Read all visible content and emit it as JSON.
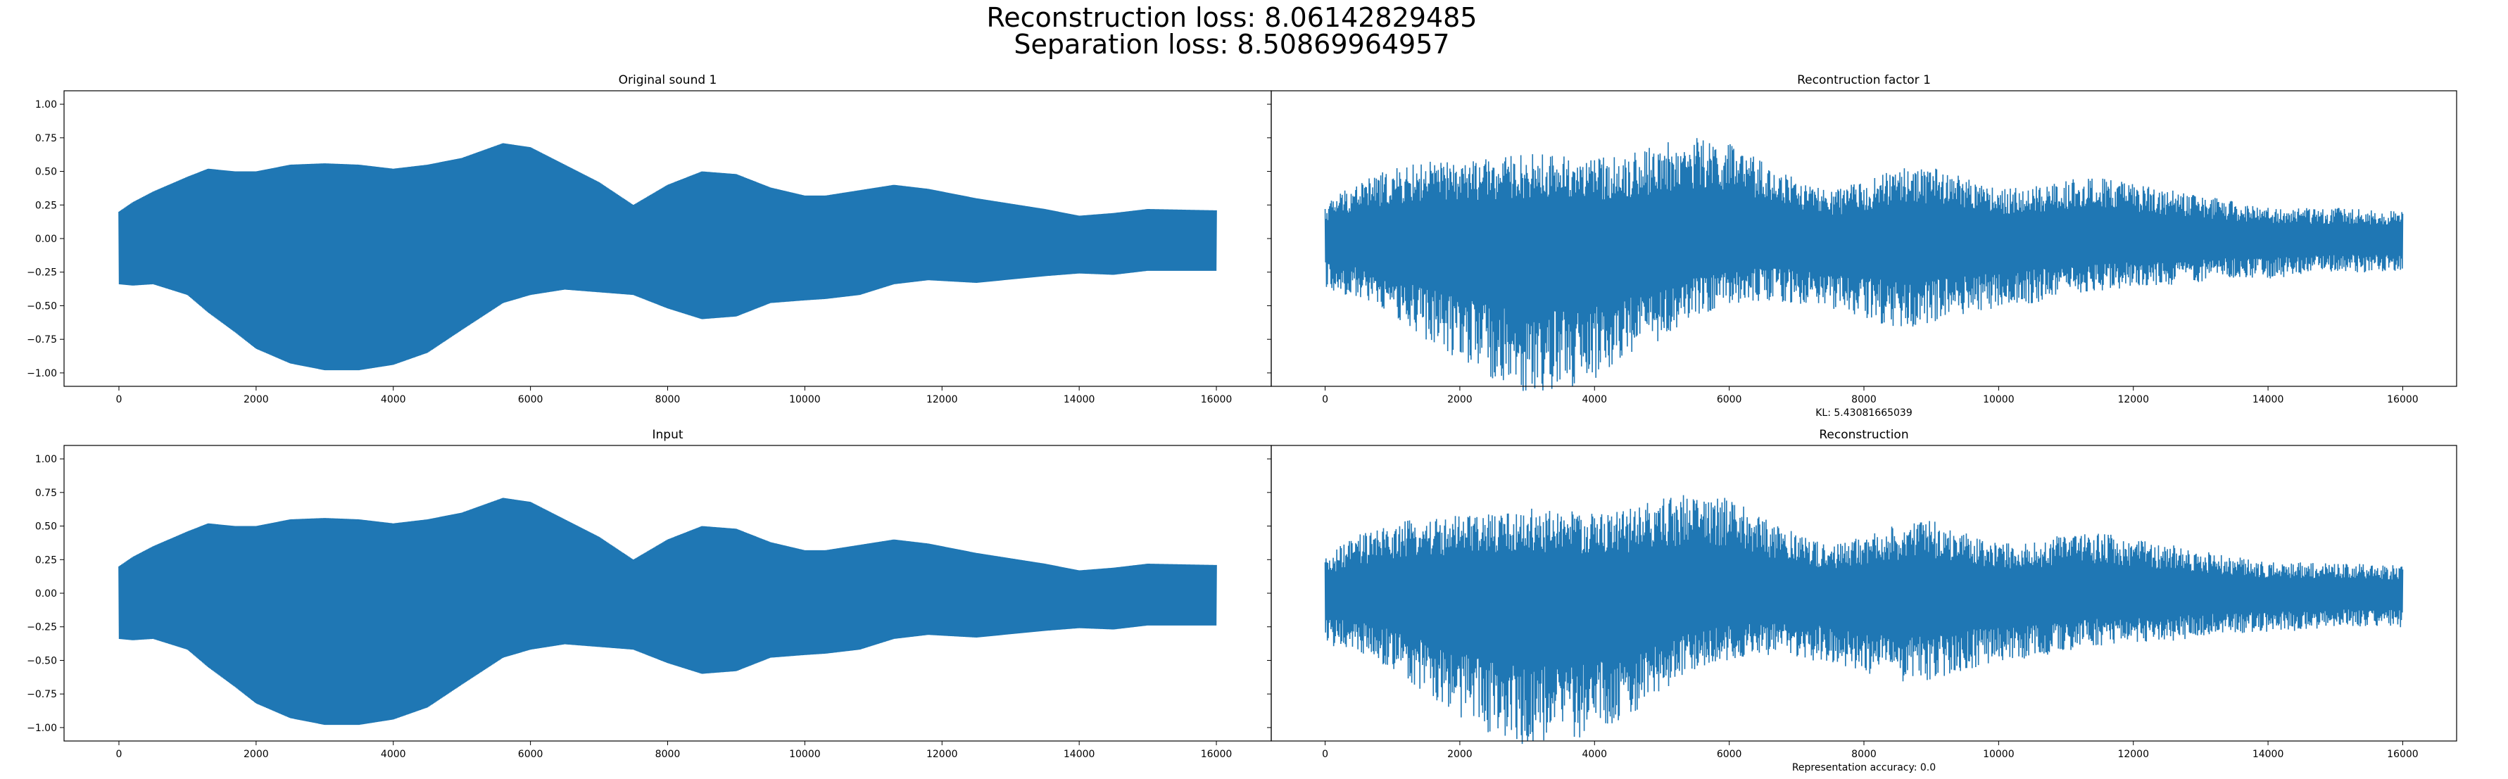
{
  "figure": {
    "suptitle_line1": "Reconstruction loss: 8.06142829485",
    "suptitle_line2": "Separation loss: 8.50869964957",
    "signal_color": "#1f77b4"
  },
  "chart_data": [
    {
      "type": "line",
      "title": "Original sound 1",
      "xlabel": "",
      "ylabel": "",
      "xlim": [
        -800,
        16800
      ],
      "ylim": [
        -1.1,
        1.1
      ],
      "xticks": [
        0,
        2000,
        4000,
        6000,
        8000,
        10000,
        12000,
        14000,
        16000
      ],
      "yticks": [
        -1.0,
        -0.75,
        -0.5,
        -0.25,
        0.0,
        0.25,
        0.5,
        0.75,
        1.0
      ],
      "ytick_labels": [
        "−1.00",
        "−0.75",
        "−0.50",
        "−0.25",
        "0.00",
        "0.25",
        "0.50",
        "0.75",
        "1.00"
      ],
      "x_range": [
        0,
        16000
      ],
      "signal": "dense oscillating waveform",
      "noisy": false,
      "envelope": {
        "x": [
          0,
          200,
          500,
          1000,
          1300,
          1700,
          2000,
          2500,
          3000,
          3500,
          4000,
          4500,
          5000,
          5600,
          6000,
          6500,
          7000,
          7500,
          8000,
          8500,
          9000,
          9500,
          10000,
          10300,
          10800,
          11300,
          11800,
          12500,
          13500,
          14000,
          14500,
          15000,
          16000
        ],
        "upper": [
          0.2,
          0.27,
          0.35,
          0.46,
          0.52,
          0.5,
          0.5,
          0.55,
          0.56,
          0.55,
          0.52,
          0.55,
          0.6,
          0.71,
          0.68,
          0.55,
          0.42,
          0.25,
          0.4,
          0.5,
          0.48,
          0.38,
          0.32,
          0.32,
          0.36,
          0.4,
          0.37,
          0.3,
          0.22,
          0.17,
          0.19,
          0.22,
          0.21
        ],
        "lower": [
          -0.34,
          -0.35,
          -0.34,
          -0.42,
          -0.55,
          -0.7,
          -0.82,
          -0.93,
          -0.98,
          -0.98,
          -0.94,
          -0.85,
          -0.68,
          -0.48,
          -0.42,
          -0.38,
          -0.4,
          -0.42,
          -0.52,
          -0.6,
          -0.58,
          -0.48,
          -0.46,
          -0.45,
          -0.42,
          -0.34,
          -0.31,
          -0.33,
          -0.28,
          -0.26,
          -0.27,
          -0.24,
          -0.24
        ]
      }
    },
    {
      "type": "line",
      "title": "Recontruction factor 1",
      "xlabel": "KL: 5.43081665039",
      "ylabel": "",
      "xlim": [
        -800,
        16800
      ],
      "ylim": [
        -1.1,
        1.1
      ],
      "xticks": [
        0,
        2000,
        4000,
        6000,
        8000,
        10000,
        12000,
        14000,
        16000
      ],
      "yticks": [
        -1.0,
        -0.75,
        -0.5,
        -0.25,
        0.0,
        0.25,
        0.5,
        0.75,
        1.0
      ],
      "ytick_labels": [
        "",
        "",
        "",
        "",
        "",
        "",
        "",
        "",
        ""
      ],
      "x_range": [
        0,
        16000
      ],
      "signal": "dense noisy waveform",
      "noisy": true,
      "envelope": {
        "x": [
          0,
          200,
          500,
          1000,
          1500,
          2000,
          2500,
          3000,
          3500,
          4000,
          4500,
          5000,
          5500,
          6000,
          6500,
          7000,
          7500,
          8000,
          8500,
          9000,
          9500,
          10000,
          10500,
          11000,
          11500,
          12000,
          12500,
          13000,
          13500,
          14000,
          14500,
          15000,
          16000
        ],
        "upper": [
          0.22,
          0.3,
          0.38,
          0.45,
          0.5,
          0.5,
          0.52,
          0.55,
          0.55,
          0.52,
          0.55,
          0.62,
          0.66,
          0.62,
          0.5,
          0.4,
          0.3,
          0.38,
          0.45,
          0.48,
          0.4,
          0.32,
          0.34,
          0.38,
          0.4,
          0.36,
          0.32,
          0.28,
          0.24,
          0.2,
          0.2,
          0.2,
          0.18
        ],
        "lower": [
          -0.32,
          -0.36,
          -0.38,
          -0.5,
          -0.66,
          -0.8,
          -0.92,
          -1.0,
          -0.98,
          -0.92,
          -0.8,
          -0.65,
          -0.5,
          -0.44,
          -0.4,
          -0.42,
          -0.45,
          -0.52,
          -0.58,
          -0.56,
          -0.5,
          -0.46,
          -0.42,
          -0.38,
          -0.34,
          -0.32,
          -0.32,
          -0.28,
          -0.26,
          -0.26,
          -0.24,
          -0.22,
          -0.22
        ]
      }
    },
    {
      "type": "line",
      "title": "Input",
      "xlabel": "",
      "ylabel": "",
      "xlim": [
        -800,
        16800
      ],
      "ylim": [
        -1.1,
        1.1
      ],
      "xticks": [
        0,
        2000,
        4000,
        6000,
        8000,
        10000,
        12000,
        14000,
        16000
      ],
      "yticks": [
        -1.0,
        -0.75,
        -0.5,
        -0.25,
        0.0,
        0.25,
        0.5,
        0.75,
        1.0
      ],
      "ytick_labels": [
        "−1.00",
        "−0.75",
        "−0.50",
        "−0.25",
        "0.00",
        "0.25",
        "0.50",
        "0.75",
        "1.00"
      ],
      "x_range": [
        0,
        16000
      ],
      "signal": "dense oscillating waveform",
      "noisy": false,
      "envelope": {
        "x": [
          0,
          200,
          500,
          1000,
          1300,
          1700,
          2000,
          2500,
          3000,
          3500,
          4000,
          4500,
          5000,
          5600,
          6000,
          6500,
          7000,
          7500,
          8000,
          8500,
          9000,
          9500,
          10000,
          10300,
          10800,
          11300,
          11800,
          12500,
          13500,
          14000,
          14500,
          15000,
          16000
        ],
        "upper": [
          0.2,
          0.27,
          0.35,
          0.46,
          0.52,
          0.5,
          0.5,
          0.55,
          0.56,
          0.55,
          0.52,
          0.55,
          0.6,
          0.71,
          0.68,
          0.55,
          0.42,
          0.25,
          0.4,
          0.5,
          0.48,
          0.38,
          0.32,
          0.32,
          0.36,
          0.4,
          0.37,
          0.3,
          0.22,
          0.17,
          0.19,
          0.22,
          0.21
        ],
        "lower": [
          -0.34,
          -0.35,
          -0.34,
          -0.42,
          -0.55,
          -0.7,
          -0.82,
          -0.93,
          -0.98,
          -0.98,
          -0.94,
          -0.85,
          -0.68,
          -0.48,
          -0.42,
          -0.38,
          -0.4,
          -0.42,
          -0.52,
          -0.6,
          -0.58,
          -0.48,
          -0.46,
          -0.45,
          -0.42,
          -0.34,
          -0.31,
          -0.33,
          -0.28,
          -0.26,
          -0.27,
          -0.24,
          -0.24
        ]
      }
    },
    {
      "type": "line",
      "title": "Reconstruction",
      "xlabel": "Representation accuracy: 0.0",
      "ylabel": "",
      "xlim": [
        -800,
        16800
      ],
      "ylim": [
        -1.1,
        1.1
      ],
      "xticks": [
        0,
        2000,
        4000,
        6000,
        8000,
        10000,
        12000,
        14000,
        16000
      ],
      "yticks": [
        -1.0,
        -0.75,
        -0.5,
        -0.25,
        0.0,
        0.25,
        0.5,
        0.75,
        1.0
      ],
      "ytick_labels": [
        "",
        "",
        "",
        "",
        "",
        "",
        "",
        "",
        ""
      ],
      "x_range": [
        0,
        16000
      ],
      "signal": "dense noisy waveform",
      "noisy": true,
      "envelope": {
        "x": [
          0,
          200,
          500,
          1000,
          1500,
          2000,
          2500,
          3000,
          3500,
          4000,
          4500,
          5000,
          5500,
          6000,
          6500,
          7000,
          7500,
          8000,
          8500,
          9000,
          9500,
          10000,
          10500,
          11000,
          11500,
          12000,
          12500,
          13000,
          13500,
          14000,
          14500,
          15000,
          16000
        ],
        "upper": [
          0.22,
          0.3,
          0.38,
          0.45,
          0.5,
          0.5,
          0.52,
          0.55,
          0.55,
          0.52,
          0.55,
          0.62,
          0.66,
          0.62,
          0.5,
          0.4,
          0.3,
          0.38,
          0.45,
          0.48,
          0.4,
          0.32,
          0.34,
          0.38,
          0.4,
          0.36,
          0.32,
          0.28,
          0.24,
          0.2,
          0.2,
          0.2,
          0.18
        ],
        "lower": [
          -0.32,
          -0.36,
          -0.38,
          -0.5,
          -0.66,
          -0.8,
          -0.92,
          -1.0,
          -0.98,
          -0.92,
          -0.8,
          -0.65,
          -0.5,
          -0.44,
          -0.4,
          -0.42,
          -0.45,
          -0.52,
          -0.58,
          -0.56,
          -0.5,
          -0.46,
          -0.42,
          -0.38,
          -0.34,
          -0.32,
          -0.32,
          -0.28,
          -0.26,
          -0.26,
          -0.24,
          -0.22,
          -0.22
        ]
      }
    }
  ]
}
